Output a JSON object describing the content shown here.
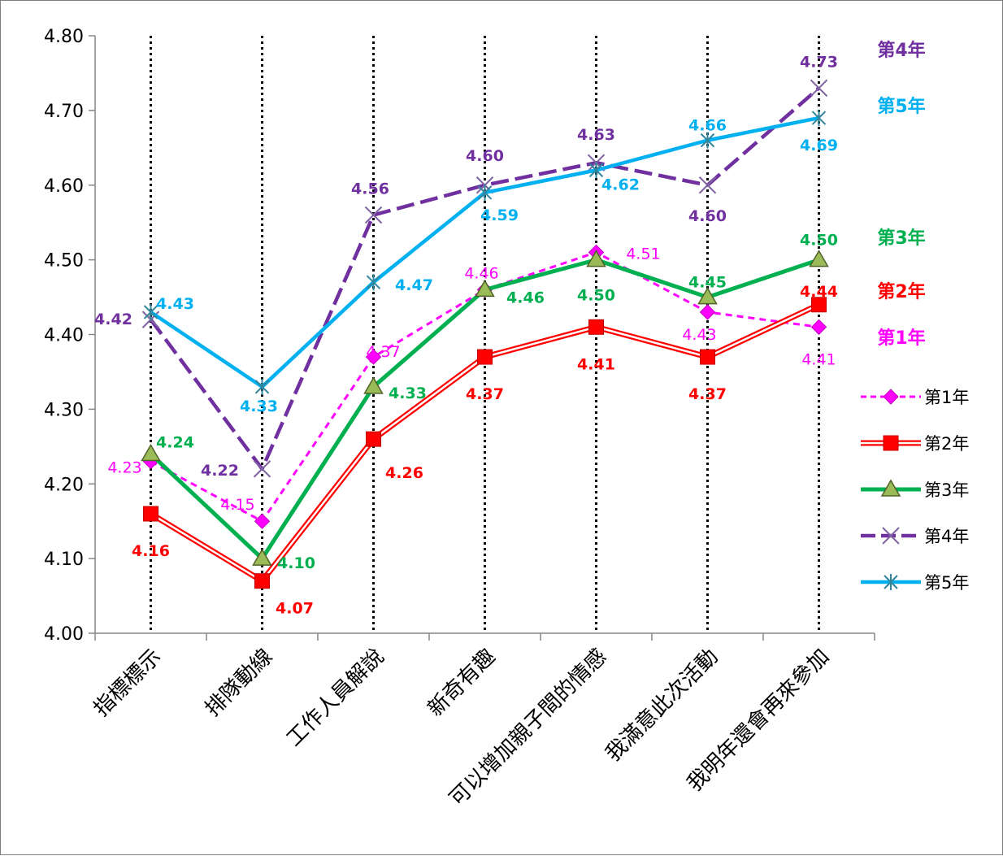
{
  "chart_data": {
    "type": "line",
    "categories": [
      "指標標示",
      "排隊動線",
      "工作人員解說",
      "新奇有趣",
      "可以增加親子間的情感",
      "我滿意此次活動",
      "我明年還會再來參加"
    ],
    "ylim": [
      4.0,
      4.8
    ],
    "yticks": [
      "4.00",
      "4.10",
      "4.20",
      "4.30",
      "4.40",
      "4.50",
      "4.60",
      "4.70",
      "4.80"
    ],
    "grid": "vertical dotted lines at each category",
    "legend_position": "right",
    "series": [
      {
        "name": "第1年",
        "values": [
          4.23,
          4.15,
          4.37,
          4.46,
          4.51,
          4.43,
          4.41
        ],
        "labels": [
          "4.23",
          "4.15",
          "4.37",
          "4.46",
          "4.51",
          "4.43",
          "4.41"
        ],
        "color": "#ff00ff",
        "line": "dashed",
        "marker": "diamond"
      },
      {
        "name": "第2年",
        "values": [
          4.16,
          4.07,
          4.26,
          4.37,
          4.41,
          4.37,
          4.44
        ],
        "labels": [
          "4.16",
          "4.07",
          "4.26",
          "4.37",
          "4.41",
          "4.37",
          "4.44"
        ],
        "color": "#ff0000",
        "line": "double",
        "marker": "square"
      },
      {
        "name": "第3年",
        "values": [
          4.24,
          4.1,
          4.33,
          4.46,
          4.5,
          4.45,
          4.5
        ],
        "labels": [
          "4.24",
          "4.10",
          "4.33",
          "4.46",
          "4.50",
          "4.45",
          "4.50"
        ],
        "color": "#00b050",
        "line": "solid",
        "marker": "triangle"
      },
      {
        "name": "第4年",
        "values": [
          4.42,
          4.22,
          4.56,
          4.6,
          4.63,
          4.6,
          4.73
        ],
        "labels": [
          "4.42",
          "4.22",
          "4.56",
          "4.60",
          "4.63",
          "4.60",
          "4.73"
        ],
        "color": "#7030a0",
        "line": "long-dash",
        "marker": "x"
      },
      {
        "name": "第5年",
        "values": [
          4.43,
          4.33,
          4.47,
          4.59,
          4.62,
          4.66,
          4.69
        ],
        "labels": [
          "4.43",
          "4.33",
          "4.47",
          "4.59",
          "4.62",
          "4.66",
          "4.69"
        ],
        "color": "#00b0f0",
        "line": "solid",
        "marker": "star"
      }
    ],
    "end_labels": [
      {
        "text": "第4年",
        "color": "#7030a0"
      },
      {
        "text": "第5年",
        "color": "#00b0f0"
      },
      {
        "text": "第3年",
        "color": "#00b050"
      },
      {
        "text": "第2年",
        "color": "#ff0000"
      },
      {
        "text": "第1年",
        "color": "#ff00ff"
      }
    ]
  }
}
